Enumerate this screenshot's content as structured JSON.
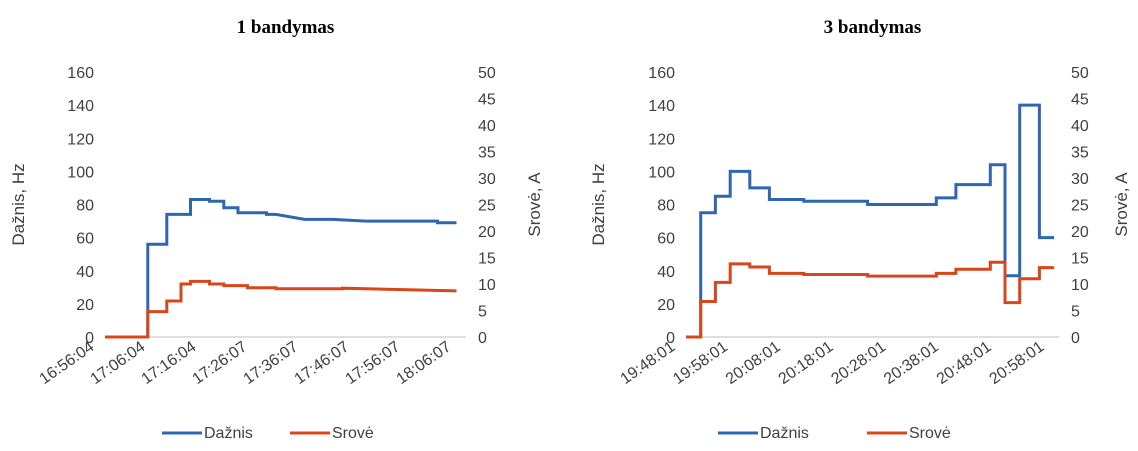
{
  "chart_data": [
    {
      "type": "line",
      "title": "1 bandymas",
      "ylabel": "Dažnis, Hz",
      "y2label": "Srovė, A",
      "ylim": [
        0,
        160
      ],
      "y2lim": [
        0,
        50
      ],
      "yticks": [
        0,
        20,
        40,
        60,
        80,
        100,
        120,
        140,
        160
      ],
      "y2ticks": [
        0,
        5,
        10,
        15,
        20,
        25,
        30,
        35,
        40,
        45,
        50
      ],
      "xticks": [
        "16:56:04",
        "17:06:04",
        "17:16:04",
        "17:26:07",
        "17:36:07",
        "17:46:07",
        "17:56:07",
        "18:06:07"
      ],
      "x_range_minutes": [
        0,
        76
      ],
      "grid": false,
      "legend": "bottom",
      "series": [
        {
          "name": "Dažnis",
          "axis": "left",
          "color": "#2E67B1",
          "x_minutes": [
            0,
            9,
            9,
            13,
            13,
            18,
            18,
            22,
            22,
            25,
            25,
            28,
            28,
            34,
            34,
            36,
            42,
            48,
            55,
            61,
            64,
            64,
            70,
            70,
            74
          ],
          "y": [
            0,
            0,
            56,
            56,
            74,
            74,
            83,
            83,
            82,
            82,
            78,
            78,
            75,
            75,
            74,
            74,
            71,
            71,
            70,
            70,
            70,
            70,
            70,
            69,
            69
          ]
        },
        {
          "name": "Srovė",
          "axis": "right",
          "color": "#D9461A",
          "x_minutes": [
            0,
            9,
            9,
            13,
            13,
            16,
            16,
            18,
            18,
            22,
            22,
            25,
            25,
            30,
            30,
            36,
            36,
            50,
            50,
            74
          ],
          "y": [
            0,
            0,
            4.8,
            4.8,
            6.8,
            6.8,
            10,
            10,
            10.5,
            10.5,
            10,
            10,
            9.7,
            9.7,
            9.3,
            9.3,
            9.1,
            9.1,
            9.2,
            8.7
          ]
        }
      ]
    },
    {
      "type": "line",
      "title": "3 bandymas",
      "ylabel": "Dažnis, Hz",
      "y2label": "Srovė, A",
      "ylim": [
        0,
        160
      ],
      "y2lim": [
        0,
        50
      ],
      "yticks": [
        0,
        20,
        40,
        60,
        80,
        100,
        120,
        140,
        160
      ],
      "y2ticks": [
        0,
        5,
        10,
        15,
        20,
        25,
        30,
        35,
        40,
        45,
        50
      ],
      "xticks": [
        "19:48:01",
        "19:58:01",
        "20:08:01",
        "20:18:01",
        "20:28:01",
        "20:38:01",
        "20:48:01",
        "20:58:01"
      ],
      "x_range_minutes": [
        0,
        76
      ],
      "grid": false,
      "legend": "bottom",
      "series": [
        {
          "name": "Dažnis",
          "axis": "left",
          "color": "#2E67B1",
          "x_minutes": [
            0,
            1,
            3,
            3,
            6,
            6,
            9,
            9,
            13,
            13,
            17,
            17,
            24,
            24,
            37,
            37,
            51,
            51,
            55,
            55,
            62,
            62,
            65,
            65,
            68,
            68,
            72,
            72,
            75,
            75
          ],
          "y": [
            0,
            0,
            0,
            75,
            75,
            85,
            85,
            100,
            100,
            90,
            90,
            83,
            83,
            82,
            82,
            80,
            80,
            84,
            84,
            92,
            92,
            104,
            104,
            37,
            37,
            140,
            140,
            60,
            60,
            60
          ]
        },
        {
          "name": "Srovė",
          "axis": "right",
          "color": "#D9461A",
          "x_minutes": [
            0,
            3,
            3,
            6,
            6,
            9,
            9,
            13,
            13,
            17,
            17,
            24,
            24,
            37,
            37,
            51,
            51,
            55,
            55,
            62,
            62,
            65,
            65,
            68,
            68,
            72,
            72,
            75
          ],
          "y": [
            0,
            0,
            6.7,
            6.7,
            10.3,
            10.3,
            13.8,
            13.8,
            13.2,
            13.2,
            12,
            12,
            11.8,
            11.8,
            11.5,
            11.5,
            12,
            12,
            12.8,
            12.8,
            14.1,
            14.1,
            6.5,
            6.5,
            11,
            11,
            13.1,
            13.1
          ]
        }
      ]
    }
  ]
}
